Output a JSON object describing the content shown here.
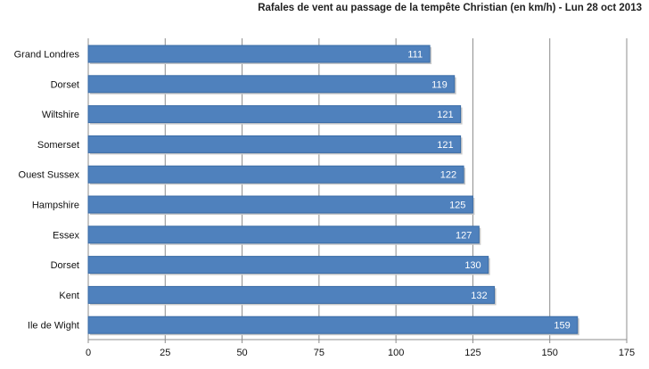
{
  "chart_data": {
    "type": "bar",
    "orientation": "horizontal",
    "title": "Rafales  de vent au passage  de la tempête Christian (en km/h) - Lun 28 oct 2013",
    "categories": [
      "Grand Londres",
      "Dorset",
      "Wiltshire",
      "Somerset",
      "Ouest Sussex",
      "Hampshire",
      "Essex",
      "Dorset",
      "Kent",
      "Ile de Wight"
    ],
    "values": [
      111,
      119,
      121,
      121,
      122,
      125,
      127,
      130,
      132,
      159
    ],
    "xlim": [
      0,
      175
    ],
    "xticks": [
      0,
      25,
      50,
      75,
      100,
      125,
      150,
      175
    ],
    "grid": true,
    "data_labels": true,
    "bar_color": "#4F81BD",
    "bar_border_color": "#3A6BA5",
    "grid_color": "#8C8C8C"
  }
}
